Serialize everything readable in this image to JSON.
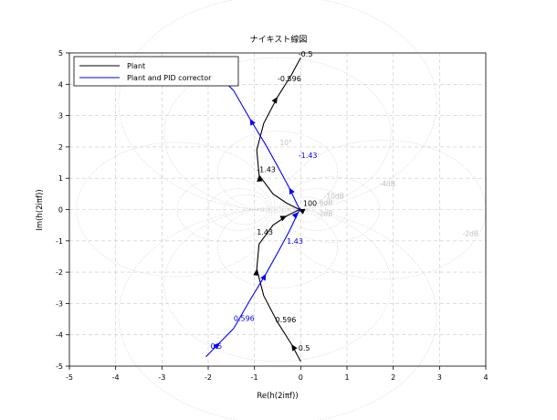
{
  "chart_data": {
    "type": "line",
    "title": "ナイキスト線図",
    "xlabel": "Re(h(2iπf))",
    "ylabel": "Im(h(2iπf))",
    "xlim": [
      -5,
      4
    ],
    "ylim": [
      -5,
      5
    ],
    "x_ticks": [
      "-5",
      "-4",
      "-3",
      "-2",
      "-1",
      "0",
      "1",
      "2",
      "3",
      "4"
    ],
    "y_ticks": [
      "-5",
      "-4",
      "-3",
      "-2",
      "-1",
      "0",
      "1",
      "2",
      "3",
      "4",
      "5"
    ],
    "grid": true,
    "legend_position": "top-left",
    "series": [
      {
        "name": "Plant",
        "color": "#000000",
        "x": [
          0.0,
          -0.2,
          -0.5,
          -0.8,
          -0.95,
          -0.9,
          -0.6,
          -0.3,
          -0.05,
          0.0,
          -0.05,
          -0.3,
          -0.6,
          -0.9,
          -0.95,
          -0.8,
          -0.5,
          -0.2,
          0.0
        ],
        "y": [
          -4.85,
          -4.3,
          -3.6,
          -2.75,
          -1.9,
          -1.1,
          -0.5,
          -0.2,
          -0.02,
          0.0,
          0.02,
          0.2,
          0.5,
          1.1,
          1.9,
          2.75,
          3.6,
          4.3,
          4.85
        ],
        "freq_labels": [
          {
            "text": "0.5",
            "x": -0.05,
            "y": -4.5
          },
          {
            "text": "0.596",
            "x": -0.55,
            "y": -3.6
          },
          {
            "text": "1.43",
            "x": -0.95,
            "y": -0.8
          },
          {
            "text": "100",
            "x": 0.05,
            "y": 0.12
          },
          {
            "text": "-1.43",
            "x": -0.95,
            "y": 1.2
          },
          {
            "text": "-0.596",
            "x": -0.5,
            "y": 4.1
          },
          {
            "text": "-0.5",
            "x": -0.05,
            "y": 4.88
          }
        ]
      },
      {
        "name": "Plant and PID corrector",
        "color": "#0000ff",
        "x": [
          -2.05,
          -1.75,
          -1.45,
          -1.1,
          -0.75,
          -0.45,
          -0.25,
          -0.05,
          0.0,
          -0.05,
          -0.25,
          -0.45,
          -0.75,
          -1.1,
          -1.45,
          -1.75,
          -2.05
        ],
        "y": [
          -4.7,
          -4.25,
          -3.8,
          -2.9,
          -2.05,
          -1.25,
          -0.7,
          -0.08,
          0.0,
          0.08,
          0.7,
          1.25,
          2.05,
          2.9,
          3.8,
          4.25,
          4.7
        ],
        "freq_labels": [
          {
            "text": "0.5",
            "x": -1.95,
            "y": -4.45
          },
          {
            "text": "0.596",
            "x": -1.45,
            "y": -3.55
          },
          {
            "text": "1.43",
            "x": -0.3,
            "y": -1.1
          },
          {
            "text": "-1.43",
            "x": -0.05,
            "y": 1.65
          },
          {
            "text": "0.596",
            "x": -3.05,
            "y": 3.95
          }
        ]
      }
    ],
    "db_labels": [
      {
        "text": "-4dB",
        "x": 1.7,
        "y": 0.75
      },
      {
        "text": "-10dB",
        "x": 0.5,
        "y": 0.35
      },
      {
        "text": "-6dB",
        "x": 0.35,
        "y": 0.15
      },
      {
        "text": "-2dB",
        "x": 3.5,
        "y": -0.85
      },
      {
        "text": "-2dB",
        "x": 0.35,
        "y": -0.2
      },
      {
        "text": "10°",
        "x": -0.45,
        "y": 2.05
      }
    ]
  }
}
